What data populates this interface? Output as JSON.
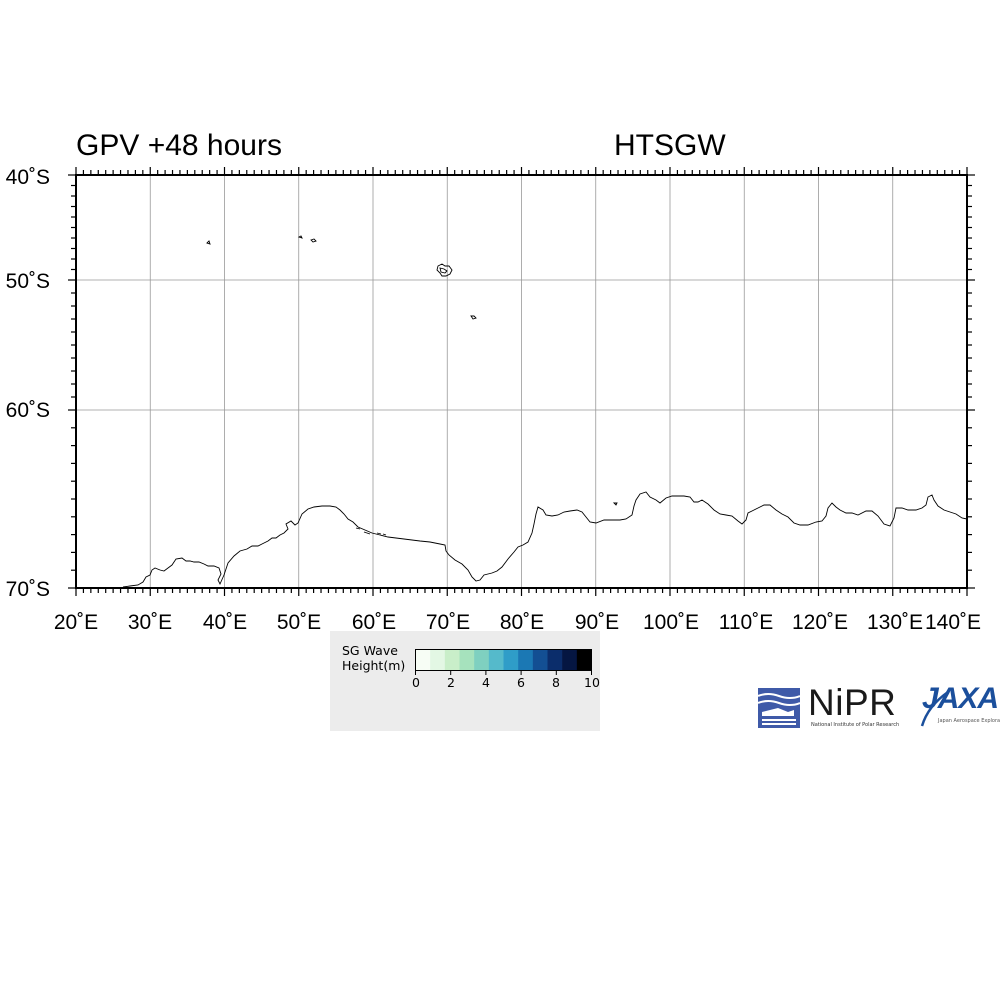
{
  "header": {
    "left_title": "GPV +48 hours",
    "right_title": "HTSGW"
  },
  "map": {
    "projection": "equirectangular",
    "lon_range": [
      20,
      140
    ],
    "lat_range": [
      -70,
      -40
    ],
    "lon_labels": [
      "20˚E",
      "30˚E",
      "40˚E",
      "50˚E",
      "60˚E",
      "70˚E",
      "80˚E",
      "90˚E",
      "100˚E",
      "110˚E",
      "120˚E",
      "130˚E",
      "140˚E"
    ],
    "lat_labels": [
      "40˚S",
      "50˚S",
      "60˚S",
      "70˚S"
    ],
    "gridlines": true,
    "coastline": "Antarctic coast and sub-Antarctic islands (Crozet, Kerguelen, Heard)",
    "grid_color": "#999999"
  },
  "colorbar": {
    "title_line1": "SG Wave",
    "title_line2": "Height(m)",
    "ticks": [
      "0",
      "2",
      "4",
      "6",
      "8",
      "10"
    ],
    "range": [
      0,
      10
    ],
    "colors": [
      "#f7fdf5",
      "#e3f7e4",
      "#c9eec9",
      "#a6e2bd",
      "#7fd0c0",
      "#55bacb",
      "#2f9dc8",
      "#1b78b4",
      "#134f93",
      "#0b2d6b",
      "#051642",
      "#000000"
    ]
  },
  "logos": {
    "nipr_name": "NiPR",
    "nipr_subtitle": "National Institute of Polar Research",
    "jaxa_name": "JAXA",
    "jaxa_subtitle": "Japan Aerospace Exploration Agency"
  }
}
